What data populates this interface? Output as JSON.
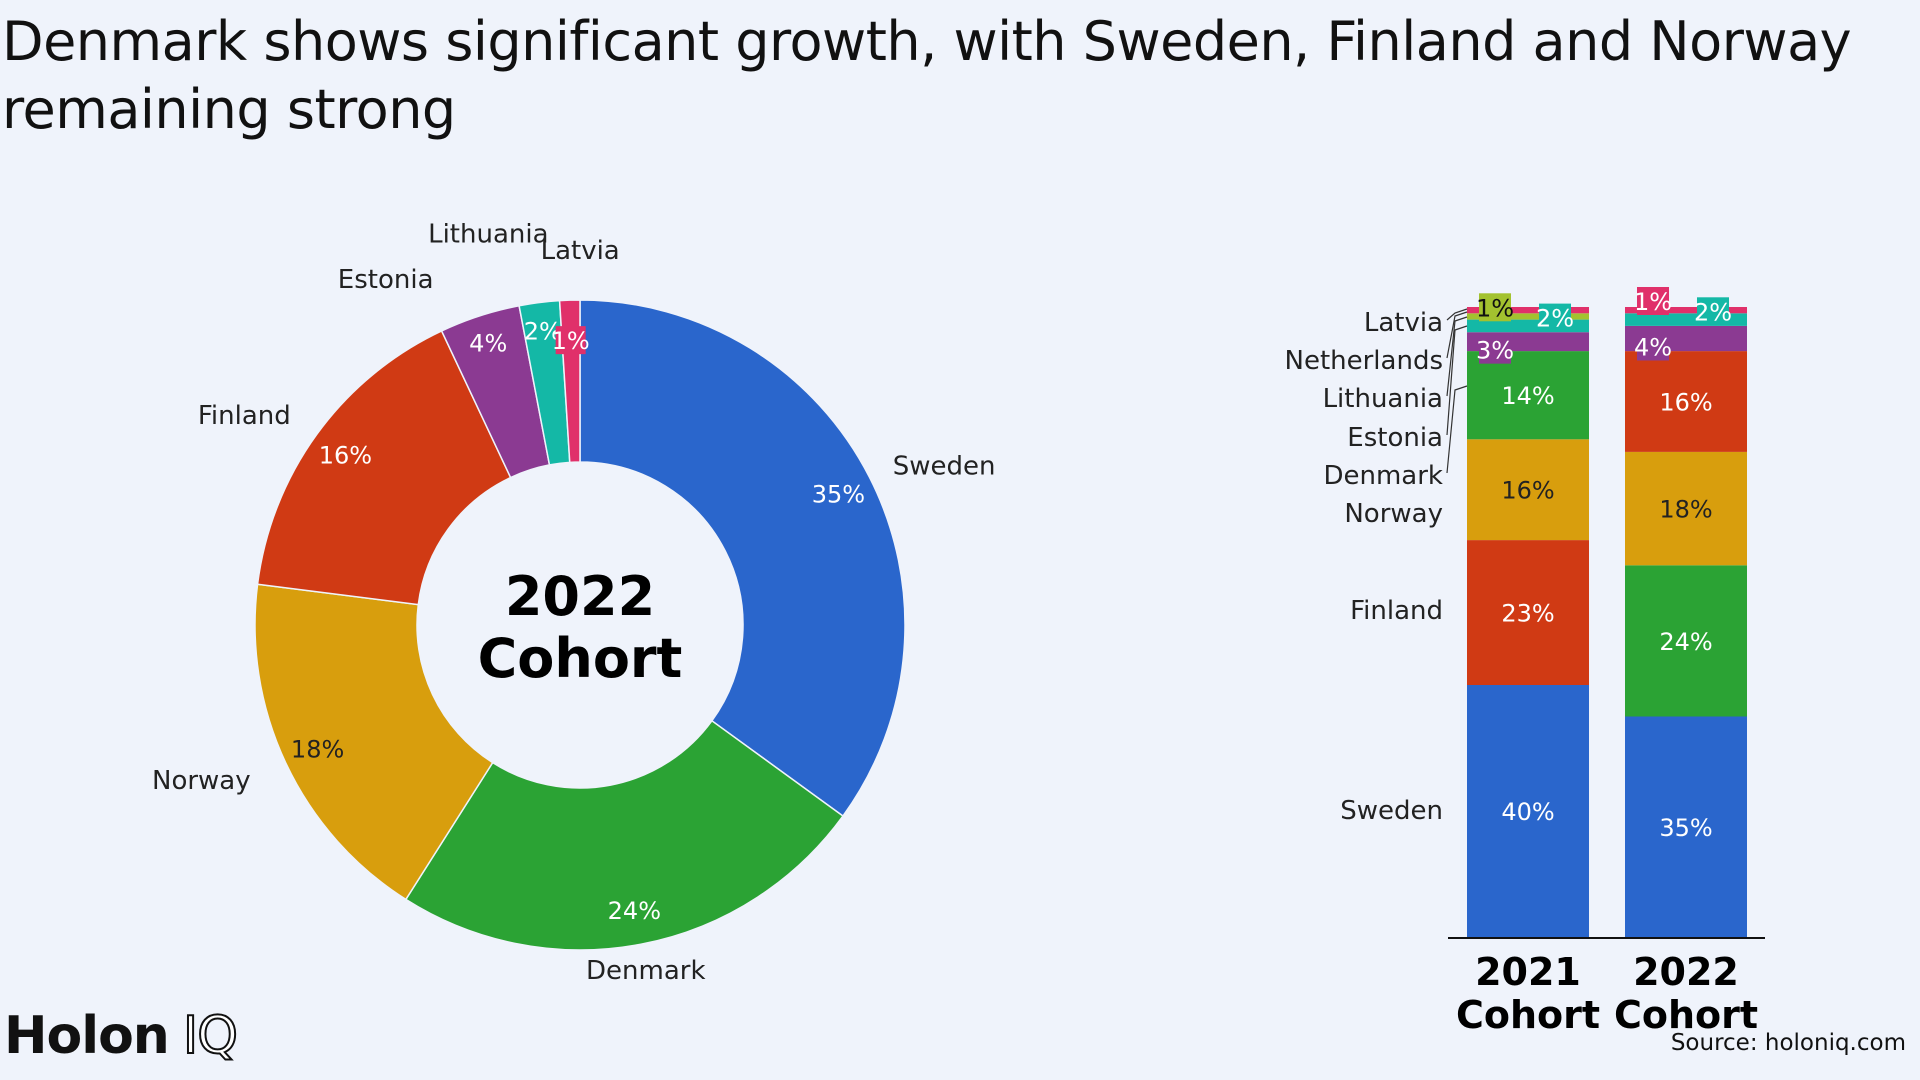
{
  "title": "Denmark shows significant growth, with Sweden, Finland and Norway remaining strong",
  "brand": {
    "name": "Holon",
    "suffix": "IQ"
  },
  "source": "Source: holoniq.com",
  "colors": {
    "Sweden": "#2a66cc",
    "Denmark": "#2ba334",
    "Norway": "#d89e0d",
    "Finland": "#d03a14",
    "Estonia": "#8b3a92",
    "Lithuania": "#14b8a6",
    "Latvia": "#e0306a",
    "Netherlands": "#a3c22f"
  },
  "chart_data": [
    {
      "type": "pie",
      "center_label": [
        "2022",
        "Cohort"
      ],
      "slices": [
        {
          "name": "Sweden",
          "value": 35,
          "label": "35%"
        },
        {
          "name": "Denmark",
          "value": 24,
          "label": "24%"
        },
        {
          "name": "Norway",
          "value": 18,
          "label": "18%"
        },
        {
          "name": "Finland",
          "value": 16,
          "label": "16%"
        },
        {
          "name": "Estonia",
          "value": 4,
          "label": "4%"
        },
        {
          "name": "Lithuania",
          "value": 2,
          "label": "2%"
        },
        {
          "name": "Latvia",
          "value": 1,
          "label": "1%"
        }
      ]
    },
    {
      "type": "bar",
      "stacked": true,
      "categories": [
        [
          "2021",
          "Cohort"
        ],
        [
          "2022",
          "Cohort"
        ]
      ],
      "legend": [
        "Latvia",
        "Netherlands",
        "Lithuania",
        "Estonia",
        "Denmark",
        "Norway",
        "Finland",
        "Sweden"
      ],
      "stacks": [
        [
          {
            "name": "Sweden",
            "value": 40,
            "label": "40%"
          },
          {
            "name": "Finland",
            "value": 23,
            "label": "23%"
          },
          {
            "name": "Norway",
            "value": 16,
            "label": "16%"
          },
          {
            "name": "Denmark",
            "value": 14,
            "label": "14%"
          },
          {
            "name": "Estonia",
            "value": 3,
            "label": "3%"
          },
          {
            "name": "Lithuania",
            "value": 2,
            "label": "2%"
          },
          {
            "name": "Netherlands",
            "value": 1,
            "label": "1%"
          },
          {
            "name": "Latvia",
            "value": 1,
            "label": ""
          }
        ],
        [
          {
            "name": "Sweden",
            "value": 35,
            "label": "35%"
          },
          {
            "name": "Denmark",
            "value": 24,
            "label": "24%"
          },
          {
            "name": "Norway",
            "value": 18,
            "label": "18%"
          },
          {
            "name": "Finland",
            "value": 16,
            "label": "16%"
          },
          {
            "name": "Estonia",
            "value": 4,
            "label": "4%"
          },
          {
            "name": "Lithuania",
            "value": 2,
            "label": "2%"
          },
          {
            "name": "Latvia",
            "value": 1,
            "label": "1%"
          }
        ]
      ]
    }
  ]
}
